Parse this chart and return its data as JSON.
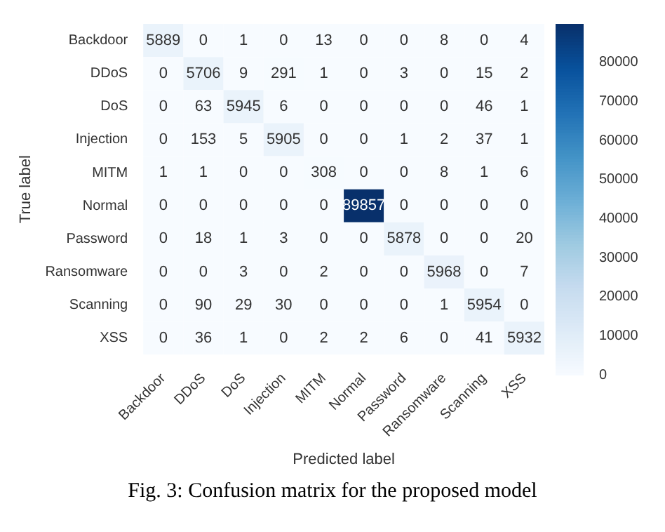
{
  "chart_data": {
    "type": "heatmap",
    "categories": [
      "Backdoor",
      "DDoS",
      "DoS",
      "Injection",
      "MITM",
      "Normal",
      "Password",
      "Ransomware",
      "Scanning",
      "XSS"
    ],
    "y_categories": [
      "Backdoor",
      "DDoS",
      "DoS",
      "Injection",
      "MITM",
      "Normal",
      "Password",
      "Ransomware",
      "Scanning",
      "XSS"
    ],
    "cells": [
      [
        5889,
        0,
        1,
        0,
        13,
        0,
        0,
        8,
        0,
        4
      ],
      [
        0,
        5706,
        9,
        291,
        1,
        0,
        3,
        0,
        15,
        2
      ],
      [
        0,
        63,
        5945,
        6,
        0,
        0,
        0,
        0,
        46,
        1
      ],
      [
        0,
        153,
        5,
        5905,
        0,
        0,
        1,
        2,
        37,
        1
      ],
      [
        1,
        1,
        0,
        0,
        308,
        0,
        0,
        8,
        1,
        6
      ],
      [
        0,
        0,
        0,
        0,
        0,
        89857,
        0,
        0,
        0,
        0
      ],
      [
        0,
        18,
        1,
        3,
        0,
        0,
        5878,
        0,
        0,
        20
      ],
      [
        0,
        0,
        3,
        0,
        2,
        0,
        0,
        5968,
        0,
        7
      ],
      [
        0,
        90,
        29,
        30,
        0,
        0,
        0,
        1,
        5954,
        0
      ],
      [
        0,
        36,
        1,
        0,
        2,
        2,
        6,
        0,
        41,
        5932
      ]
    ],
    "data_labels": true,
    "clim": [
      0,
      89857
    ],
    "cticks": [
      0,
      10000,
      20000,
      30000,
      40000,
      50000,
      60000,
      70000,
      80000
    ],
    "xlabel": "Predicted label",
    "ylabel": "True label",
    "annotations": [
      "Fig. 3: Confusion matrix for the proposed model"
    ]
  }
}
